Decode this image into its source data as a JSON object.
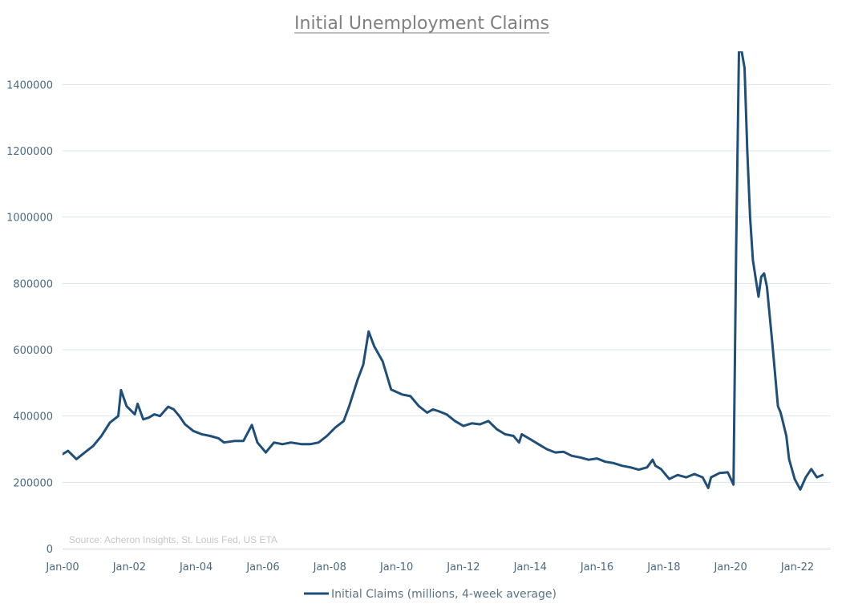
{
  "chart_data": {
    "type": "line",
    "title": "Initial Unemployment Claims",
    "source_note": "Source: Acheron Insights, St. Louis Fed, US ETA",
    "xlabel": "",
    "ylabel": "",
    "ylim": [
      0,
      1500000
    ],
    "y_ticks": [
      0,
      200000,
      400000,
      600000,
      800000,
      1000000,
      1200000,
      1400000
    ],
    "x_tick_labels": [
      "Jan-00",
      "Jan-02",
      "Jan-04",
      "Jan-06",
      "Jan-08",
      "Jan-10",
      "Jan-12",
      "Jan-14",
      "Jan-16",
      "Jan-18",
      "Jan-20",
      "Jan-22"
    ],
    "grid": "horizontal",
    "legend_position": "bottom",
    "series": [
      {
        "name": "Initial Claims (millions, 4-week average)",
        "color": "#1f4e79",
        "points": [
          [
            "2000-01",
            285000
          ],
          [
            "2000-03",
            295000
          ],
          [
            "2000-06",
            270000
          ],
          [
            "2000-09",
            290000
          ],
          [
            "2000-12",
            310000
          ],
          [
            "2001-03",
            340000
          ],
          [
            "2001-06",
            380000
          ],
          [
            "2001-09",
            400000
          ],
          [
            "2001-10",
            478000
          ],
          [
            "2001-12",
            430000
          ],
          [
            "2002-03",
            405000
          ],
          [
            "2002-04",
            437000
          ],
          [
            "2002-06",
            390000
          ],
          [
            "2002-08",
            395000
          ],
          [
            "2002-10",
            405000
          ],
          [
            "2002-12",
            400000
          ],
          [
            "2003-03",
            428000
          ],
          [
            "2003-05",
            420000
          ],
          [
            "2003-07",
            400000
          ],
          [
            "2003-09",
            375000
          ],
          [
            "2003-12",
            355000
          ],
          [
            "2004-03",
            345000
          ],
          [
            "2004-06",
            340000
          ],
          [
            "2004-09",
            333000
          ],
          [
            "2004-11",
            320000
          ],
          [
            "2005-03",
            325000
          ],
          [
            "2005-06",
            325000
          ],
          [
            "2005-09",
            373000
          ],
          [
            "2005-11",
            320000
          ],
          [
            "2006-02",
            290000
          ],
          [
            "2006-05",
            320000
          ],
          [
            "2006-08",
            315000
          ],
          [
            "2006-11",
            320000
          ],
          [
            "2007-03",
            315000
          ],
          [
            "2007-06",
            315000
          ],
          [
            "2007-09",
            320000
          ],
          [
            "2007-12",
            340000
          ],
          [
            "2008-03",
            365000
          ],
          [
            "2008-06",
            385000
          ],
          [
            "2008-08",
            430000
          ],
          [
            "2008-11",
            510000
          ],
          [
            "2009-01",
            555000
          ],
          [
            "2009-03",
            655000
          ],
          [
            "2009-05",
            610000
          ],
          [
            "2009-08",
            565000
          ],
          [
            "2009-11",
            480000
          ],
          [
            "2010-03",
            465000
          ],
          [
            "2010-06",
            460000
          ],
          [
            "2010-09",
            430000
          ],
          [
            "2010-12",
            410000
          ],
          [
            "2011-02",
            420000
          ],
          [
            "2011-04",
            415000
          ],
          [
            "2011-07",
            405000
          ],
          [
            "2011-10",
            385000
          ],
          [
            "2012-01",
            370000
          ],
          [
            "2012-04",
            378000
          ],
          [
            "2012-07",
            375000
          ],
          [
            "2012-10",
            385000
          ],
          [
            "2013-01",
            360000
          ],
          [
            "2013-04",
            345000
          ],
          [
            "2013-07",
            340000
          ],
          [
            "2013-09",
            320000
          ],
          [
            "2013-10",
            345000
          ],
          [
            "2014-01",
            330000
          ],
          [
            "2014-04",
            315000
          ],
          [
            "2014-07",
            300000
          ],
          [
            "2014-10",
            290000
          ],
          [
            "2015-01",
            292000
          ],
          [
            "2015-04",
            280000
          ],
          [
            "2015-07",
            275000
          ],
          [
            "2015-10",
            268000
          ],
          [
            "2016-01",
            272000
          ],
          [
            "2016-04",
            262000
          ],
          [
            "2016-07",
            258000
          ],
          [
            "2016-10",
            250000
          ],
          [
            "2017-01",
            245000
          ],
          [
            "2017-04",
            238000
          ],
          [
            "2017-07",
            245000
          ],
          [
            "2017-09",
            268000
          ],
          [
            "2017-10",
            250000
          ],
          [
            "2017-12",
            240000
          ],
          [
            "2018-03",
            210000
          ],
          [
            "2018-06",
            222000
          ],
          [
            "2018-09",
            215000
          ],
          [
            "2018-12",
            225000
          ],
          [
            "2019-03",
            215000
          ],
          [
            "2019-05",
            183000
          ],
          [
            "2019-06",
            215000
          ],
          [
            "2019-09",
            228000
          ],
          [
            "2019-12",
            230000
          ],
          [
            "2020-02",
            193000
          ],
          [
            "2020-03",
            900000
          ],
          [
            "2020-04",
            1500000
          ],
          [
            "2020-05",
            1500000
          ],
          [
            "2020-06",
            1450000
          ],
          [
            "2020-07",
            1200000
          ],
          [
            "2020-08",
            1000000
          ],
          [
            "2020-09",
            870000
          ],
          [
            "2020-11",
            760000
          ],
          [
            "2020-12",
            820000
          ],
          [
            "2021-01",
            830000
          ],
          [
            "2021-02",
            790000
          ],
          [
            "2021-04",
            620000
          ],
          [
            "2021-06",
            430000
          ],
          [
            "2021-07",
            410000
          ],
          [
            "2021-09",
            340000
          ],
          [
            "2021-10",
            270000
          ],
          [
            "2021-12",
            210000
          ],
          [
            "2022-02",
            178000
          ],
          [
            "2022-04",
            215000
          ],
          [
            "2022-06",
            240000
          ],
          [
            "2022-08",
            215000
          ],
          [
            "2022-10",
            222000
          ]
        ]
      }
    ]
  }
}
